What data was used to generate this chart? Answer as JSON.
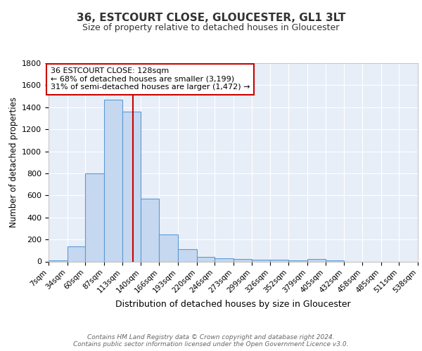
{
  "title1": "36, ESTCOURT CLOSE, GLOUCESTER, GL1 3LT",
  "title2": "Size of property relative to detached houses in Gloucester",
  "xlabel": "Distribution of detached houses by size in Gloucester",
  "ylabel": "Number of detached properties",
  "bin_edges": [
    7,
    34,
    60,
    87,
    113,
    140,
    166,
    193,
    220,
    246,
    273,
    299,
    326,
    352,
    379,
    405,
    432,
    458,
    485,
    511,
    538
  ],
  "bar_heights": [
    10,
    140,
    800,
    1470,
    1360,
    570,
    245,
    110,
    40,
    28,
    22,
    15,
    18,
    10,
    20,
    10,
    0,
    0,
    0,
    0
  ],
  "bar_color": "#c5d8f0",
  "bar_edgecolor": "#5b9bd5",
  "bar_linewidth": 0.8,
  "red_line_x": 128,
  "red_line_color": "#cc0000",
  "ylim": [
    0,
    1800
  ],
  "yticks": [
    0,
    200,
    400,
    600,
    800,
    1000,
    1200,
    1400,
    1600,
    1800
  ],
  "background_color": "#e8eef8",
  "grid_color": "#ffffff",
  "annotation_line1": "36 ESTCOURT CLOSE: 128sqm",
  "annotation_line2": "← 68% of detached houses are smaller (3,199)",
  "annotation_line3": "31% of semi-detached houses are larger (1,472) →",
  "annotation_box_color": "#ffffff",
  "annotation_box_edgecolor": "#cc0000",
  "footer_text": "Contains HM Land Registry data © Crown copyright and database right 2024.\nContains public sector information licensed under the Open Government Licence v3.0.",
  "tick_labels": [
    "7sqm",
    "34sqm",
    "60sqm",
    "87sqm",
    "113sqm",
    "140sqm",
    "166sqm",
    "193sqm",
    "220sqm",
    "246sqm",
    "273sqm",
    "299sqm",
    "326sqm",
    "352sqm",
    "379sqm",
    "405sqm",
    "432sqm",
    "458sqm",
    "485sqm",
    "511sqm",
    "538sqm"
  ]
}
